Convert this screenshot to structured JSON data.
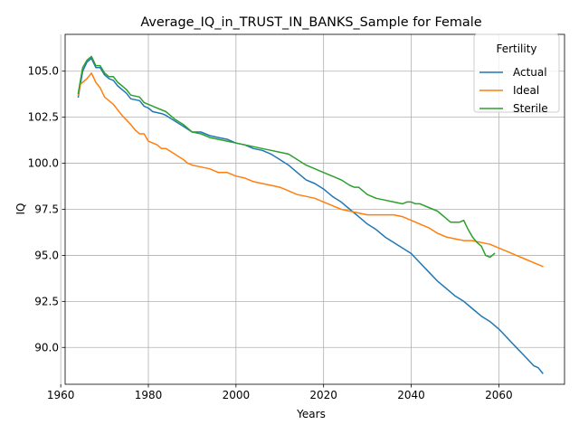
{
  "chart_data": {
    "type": "line",
    "title": "Average_IQ_in_TRUST_IN_BANKS_Sample for Female",
    "xlabel": "Years",
    "ylabel": "IQ",
    "xlim": [
      1961,
      2075
    ],
    "ylim": [
      88.0,
      107.0
    ],
    "xticks": [
      1960,
      1980,
      2000,
      2020,
      2040,
      2060
    ],
    "xtick_labels": [
      "1960",
      "1980",
      "2000",
      "2020",
      "2040",
      "2060"
    ],
    "yticks": [
      90.0,
      92.5,
      95.0,
      97.5,
      100.0,
      102.5,
      105.0
    ],
    "ytick_labels": [
      "90.0",
      "92.5",
      "95.0",
      "97.5",
      "100.0",
      "102.5",
      "105.0"
    ],
    "grid": true,
    "legend": {
      "title": "Fertility",
      "placement": "top-right"
    },
    "series": [
      {
        "name": "Actual",
        "color": "#1f77b4",
        "points": [
          [
            1964,
            103.6
          ],
          [
            1964.5,
            104.3
          ],
          [
            1965,
            105.0
          ],
          [
            1966,
            105.5
          ],
          [
            1967,
            105.7
          ],
          [
            1968,
            105.2
          ],
          [
            1969,
            105.2
          ],
          [
            1970,
            104.8
          ],
          [
            1971,
            104.6
          ],
          [
            1972,
            104.5
          ],
          [
            1973,
            104.2
          ],
          [
            1975,
            103.8
          ],
          [
            1976,
            103.5
          ],
          [
            1978,
            103.4
          ],
          [
            1979,
            103.1
          ],
          [
            1980,
            103.0
          ],
          [
            1981,
            102.8
          ],
          [
            1983,
            102.7
          ],
          [
            1984,
            102.6
          ],
          [
            1986,
            102.3
          ],
          [
            1988,
            102.0
          ],
          [
            1990,
            101.7
          ],
          [
            1992,
            101.7
          ],
          [
            1994,
            101.5
          ],
          [
            1996,
            101.4
          ],
          [
            1998,
            101.3
          ],
          [
            2000,
            101.1
          ],
          [
            2002,
            101.0
          ],
          [
            2004,
            100.8
          ],
          [
            2006,
            100.7
          ],
          [
            2008,
            100.5
          ],
          [
            2010,
            100.2
          ],
          [
            2012,
            99.9
          ],
          [
            2014,
            99.5
          ],
          [
            2016,
            99.1
          ],
          [
            2018,
            98.9
          ],
          [
            2020,
            98.6
          ],
          [
            2022,
            98.2
          ],
          [
            2024,
            97.9
          ],
          [
            2026,
            97.5
          ],
          [
            2028,
            97.1
          ],
          [
            2030,
            96.7
          ],
          [
            2032,
            96.4
          ],
          [
            2034,
            96.0
          ],
          [
            2036,
            95.7
          ],
          [
            2038,
            95.4
          ],
          [
            2040,
            95.1
          ],
          [
            2042,
            94.6
          ],
          [
            2044,
            94.1
          ],
          [
            2046,
            93.6
          ],
          [
            2048,
            93.2
          ],
          [
            2050,
            92.8
          ],
          [
            2052,
            92.5
          ],
          [
            2054,
            92.1
          ],
          [
            2056,
            91.7
          ],
          [
            2058,
            91.4
          ],
          [
            2060,
            91.0
          ],
          [
            2062,
            90.5
          ],
          [
            2064,
            90.0
          ],
          [
            2066,
            89.5
          ],
          [
            2068,
            89.0
          ],
          [
            2069,
            88.9
          ],
          [
            2070,
            88.6
          ]
        ]
      },
      {
        "name": "Ideal",
        "color": "#ff7f0e",
        "points": [
          [
            1964,
            103.7
          ],
          [
            1964.5,
            104.3
          ],
          [
            1965,
            104.4
          ],
          [
            1966,
            104.6
          ],
          [
            1967,
            104.9
          ],
          [
            1968,
            104.4
          ],
          [
            1969,
            104.1
          ],
          [
            1970,
            103.6
          ],
          [
            1971,
            103.4
          ],
          [
            1972,
            103.2
          ],
          [
            1974,
            102.6
          ],
          [
            1976,
            102.1
          ],
          [
            1977,
            101.8
          ],
          [
            1978,
            101.6
          ],
          [
            1979,
            101.6
          ],
          [
            1980,
            101.2
          ],
          [
            1981,
            101.1
          ],
          [
            1982,
            101.0
          ],
          [
            1983,
            100.8
          ],
          [
            1984,
            100.8
          ],
          [
            1986,
            100.5
          ],
          [
            1988,
            100.2
          ],
          [
            1989,
            100.0
          ],
          [
            1990,
            99.9
          ],
          [
            1992,
            99.8
          ],
          [
            1994,
            99.7
          ],
          [
            1996,
            99.5
          ],
          [
            1998,
            99.5
          ],
          [
            2000,
            99.3
          ],
          [
            2002,
            99.2
          ],
          [
            2004,
            99.0
          ],
          [
            2006,
            98.9
          ],
          [
            2008,
            98.8
          ],
          [
            2010,
            98.7
          ],
          [
            2012,
            98.5
          ],
          [
            2014,
            98.3
          ],
          [
            2016,
            98.2
          ],
          [
            2018,
            98.1
          ],
          [
            2020,
            97.9
          ],
          [
            2022,
            97.7
          ],
          [
            2024,
            97.5
          ],
          [
            2026,
            97.4
          ],
          [
            2028,
            97.3
          ],
          [
            2030,
            97.2
          ],
          [
            2032,
            97.2
          ],
          [
            2034,
            97.2
          ],
          [
            2036,
            97.2
          ],
          [
            2038,
            97.1
          ],
          [
            2040,
            96.9
          ],
          [
            2042,
            96.7
          ],
          [
            2044,
            96.5
          ],
          [
            2046,
            96.2
          ],
          [
            2048,
            96.0
          ],
          [
            2050,
            95.9
          ],
          [
            2052,
            95.8
          ],
          [
            2054,
            95.8
          ],
          [
            2056,
            95.7
          ],
          [
            2058,
            95.6
          ],
          [
            2060,
            95.4
          ],
          [
            2062,
            95.2
          ],
          [
            2064,
            95.0
          ],
          [
            2066,
            94.8
          ],
          [
            2068,
            94.6
          ],
          [
            2070,
            94.4
          ]
        ]
      },
      {
        "name": "Sterile",
        "color": "#2ca02c",
        "points": [
          [
            1964,
            103.8
          ],
          [
            1964.5,
            104.5
          ],
          [
            1965,
            105.2
          ],
          [
            1966,
            105.6
          ],
          [
            1967,
            105.8
          ],
          [
            1968,
            105.3
          ],
          [
            1969,
            105.3
          ],
          [
            1970,
            104.9
          ],
          [
            1971,
            104.7
          ],
          [
            1972,
            104.7
          ],
          [
            1973,
            104.4
          ],
          [
            1975,
            104.0
          ],
          [
            1976,
            103.7
          ],
          [
            1978,
            103.6
          ],
          [
            1979,
            103.3
          ],
          [
            1980,
            103.2
          ],
          [
            1981,
            103.1
          ],
          [
            1983,
            102.9
          ],
          [
            1984,
            102.8
          ],
          [
            1986,
            102.4
          ],
          [
            1988,
            102.1
          ],
          [
            1990,
            101.7
          ],
          [
            1992,
            101.6
          ],
          [
            1994,
            101.4
          ],
          [
            1996,
            101.3
          ],
          [
            1998,
            101.2
          ],
          [
            2000,
            101.1
          ],
          [
            2002,
            101.0
          ],
          [
            2004,
            100.9
          ],
          [
            2006,
            100.8
          ],
          [
            2008,
            100.7
          ],
          [
            2010,
            100.6
          ],
          [
            2012,
            100.5
          ],
          [
            2014,
            100.2
          ],
          [
            2016,
            99.9
          ],
          [
            2018,
            99.7
          ],
          [
            2020,
            99.5
          ],
          [
            2022,
            99.3
          ],
          [
            2024,
            99.1
          ],
          [
            2026,
            98.8
          ],
          [
            2027,
            98.7
          ],
          [
            2028,
            98.7
          ],
          [
            2030,
            98.3
          ],
          [
            2032,
            98.1
          ],
          [
            2034,
            98.0
          ],
          [
            2036,
            97.9
          ],
          [
            2038,
            97.8
          ],
          [
            2039,
            97.9
          ],
          [
            2040,
            97.9
          ],
          [
            2041,
            97.8
          ],
          [
            2042,
            97.8
          ],
          [
            2044,
            97.6
          ],
          [
            2046,
            97.4
          ],
          [
            2048,
            97.0
          ],
          [
            2049,
            96.8
          ],
          [
            2051,
            96.8
          ],
          [
            2052,
            96.9
          ],
          [
            2053,
            96.4
          ],
          [
            2054,
            96.0
          ],
          [
            2055,
            95.7
          ],
          [
            2056,
            95.5
          ],
          [
            2057,
            95.0
          ],
          [
            2058,
            94.9
          ],
          [
            2059,
            95.1
          ]
        ]
      }
    ]
  }
}
